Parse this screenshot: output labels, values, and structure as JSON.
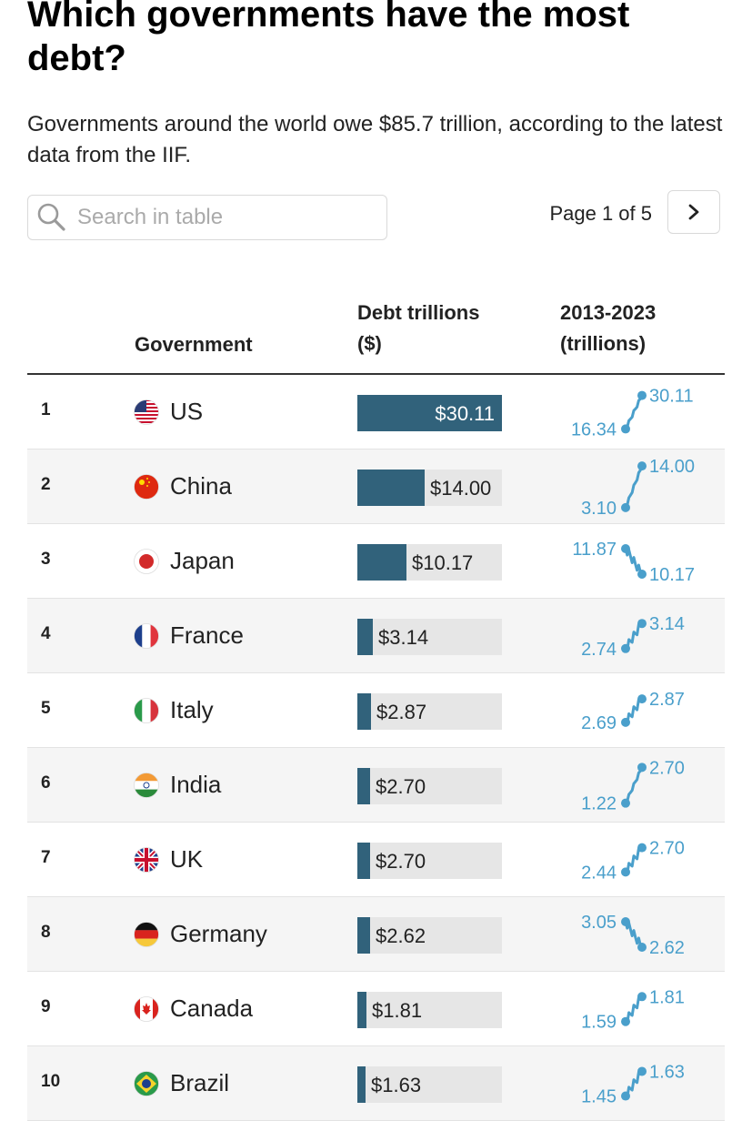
{
  "title": "Which governments have the most debt?",
  "subtitle": "Governments around the world owe $85.7 trillion, according to the latest data from the IIF.",
  "search": {
    "placeholder": "Search in table"
  },
  "pager": {
    "text": "Page 1 of 5"
  },
  "columns": {
    "government": "Government",
    "debt": [
      "Debt trillions",
      "($)"
    ],
    "trend": [
      "2013-2023",
      "(trillions)"
    ]
  },
  "colors": {
    "bar": "#31627b",
    "track": "#e6e6e6",
    "spark": "#4a9fcb"
  },
  "chart_data": {
    "type": "table",
    "bar_max": 30.11,
    "rows": [
      {
        "rank": "1",
        "country": "US",
        "flag": "us-flag",
        "debt": 30.11,
        "debt_label": "$30.11",
        "start": 16.34,
        "end": 30.11,
        "start_label": "16.34",
        "end_label": "30.11"
      },
      {
        "rank": "2",
        "country": "China",
        "flag": "china-flag",
        "debt": 14.0,
        "debt_label": "$14.00",
        "start": 3.1,
        "end": 14.0,
        "start_label": "3.10",
        "end_label": "14.00"
      },
      {
        "rank": "3",
        "country": "Japan",
        "flag": "japan-flag",
        "debt": 10.17,
        "debt_label": "$10.17",
        "start": 11.87,
        "end": 10.17,
        "start_label": "11.87",
        "end_label": "10.17"
      },
      {
        "rank": "4",
        "country": "France",
        "flag": "france-flag",
        "debt": 3.14,
        "debt_label": "$3.14",
        "start": 2.74,
        "end": 3.14,
        "start_label": "2.74",
        "end_label": "3.14"
      },
      {
        "rank": "5",
        "country": "Italy",
        "flag": "italy-flag",
        "debt": 2.87,
        "debt_label": "$2.87",
        "start": 2.69,
        "end": 2.87,
        "start_label": "2.69",
        "end_label": "2.87"
      },
      {
        "rank": "6",
        "country": "India",
        "flag": "india-flag",
        "debt": 2.7,
        "debt_label": "$2.70",
        "start": 1.22,
        "end": 2.7,
        "start_label": "1.22",
        "end_label": "2.70"
      },
      {
        "rank": "7",
        "country": "UK",
        "flag": "uk-flag",
        "debt": 2.7,
        "debt_label": "$2.70",
        "start": 2.44,
        "end": 2.7,
        "start_label": "2.44",
        "end_label": "2.70"
      },
      {
        "rank": "8",
        "country": "Germany",
        "flag": "germany-flag",
        "debt": 2.62,
        "debt_label": "$2.62",
        "start": 3.05,
        "end": 2.62,
        "start_label": "3.05",
        "end_label": "2.62"
      },
      {
        "rank": "9",
        "country": "Canada",
        "flag": "canada-flag",
        "debt": 1.81,
        "debt_label": "$1.81",
        "start": 1.59,
        "end": 1.81,
        "start_label": "1.59",
        "end_label": "1.81"
      },
      {
        "rank": "10",
        "country": "Brazil",
        "flag": "brazil-flag",
        "debt": 1.63,
        "debt_label": "$1.63",
        "start": 1.45,
        "end": 1.63,
        "start_label": "1.45",
        "end_label": "1.63"
      }
    ]
  }
}
